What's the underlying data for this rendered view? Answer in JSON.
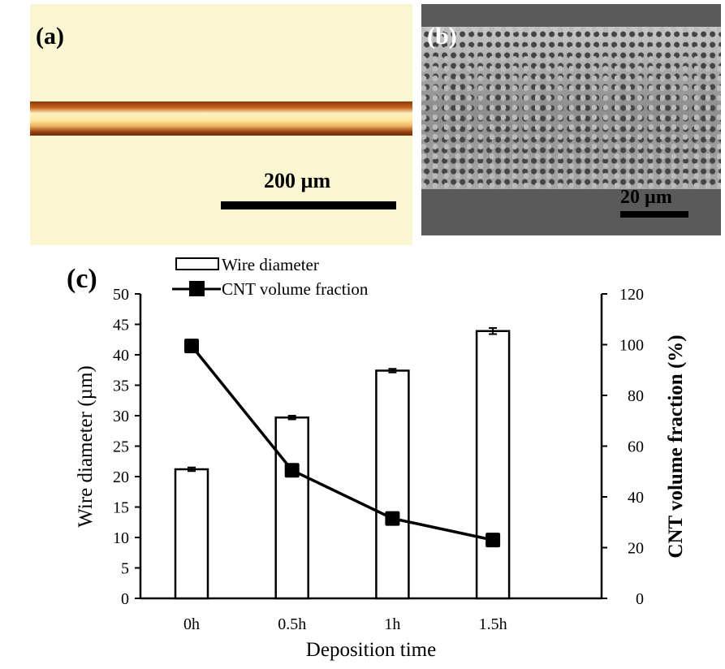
{
  "panels": {
    "a": {
      "label": "(a)",
      "scale": "200 µm"
    },
    "b": {
      "label": "(b)",
      "scale": "20 µm"
    },
    "c": {
      "label": "(c)"
    }
  },
  "chart_data": {
    "type": "bar",
    "categories": [
      "0h",
      "0.5h",
      "1h",
      "1.5h"
    ],
    "xlabel": "Deposition time",
    "ylabel": "Wire diameter (µm)",
    "y2label": "CNT volume fraction (%)",
    "ylim": [
      0,
      50
    ],
    "yticks": [
      0,
      5,
      10,
      15,
      20,
      25,
      30,
      35,
      40,
      45,
      50
    ],
    "y2lim": [
      0,
      120
    ],
    "y2ticks": [
      0,
      20,
      40,
      60,
      80,
      100,
      120
    ],
    "legend_placement": "top-left",
    "series": [
      {
        "name": "Wire diameter",
        "type": "bar",
        "axis": "left",
        "values": [
          21.2,
          29.7,
          37.4,
          43.9
        ],
        "errors": [
          0.3,
          0.3,
          0.3,
          0.5
        ]
      },
      {
        "name": "CNT volume fraction",
        "type": "line",
        "axis": "right",
        "values": [
          99.5,
          50.5,
          31.5,
          23
        ]
      }
    ],
    "grid": false
  }
}
